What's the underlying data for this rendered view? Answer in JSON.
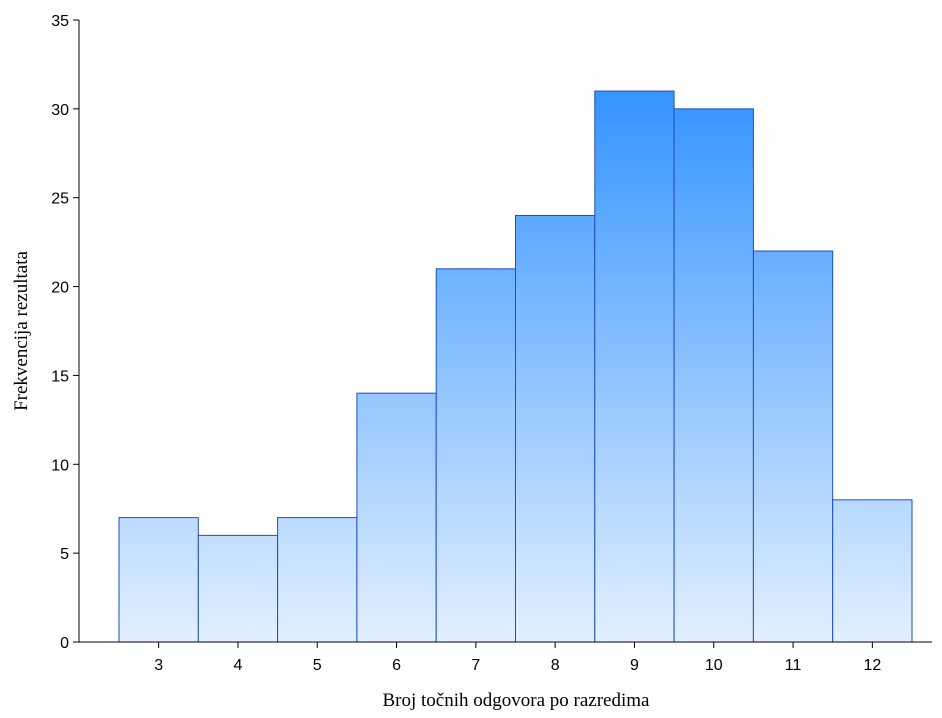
{
  "chart_data": {
    "type": "bar",
    "categories": [
      "3",
      "4",
      "5",
      "6",
      "7",
      "8",
      "9",
      "10",
      "11",
      "12"
    ],
    "values": [
      7,
      6,
      7,
      14,
      21,
      24,
      31,
      30,
      22,
      8
    ],
    "title": "",
    "xlabel": "Broj točnih odgovora po razredima",
    "ylabel": "Frekvencija rezultata",
    "ylim": [
      0,
      35
    ],
    "yticks": [
      0,
      5,
      10,
      15,
      20,
      25,
      30,
      35
    ],
    "grid": false,
    "legend": "none",
    "colors": {
      "bar_top": "#1e88ff",
      "bar_bottom": "#e3f0ff",
      "bar_edge": "#1f4fbf"
    }
  }
}
